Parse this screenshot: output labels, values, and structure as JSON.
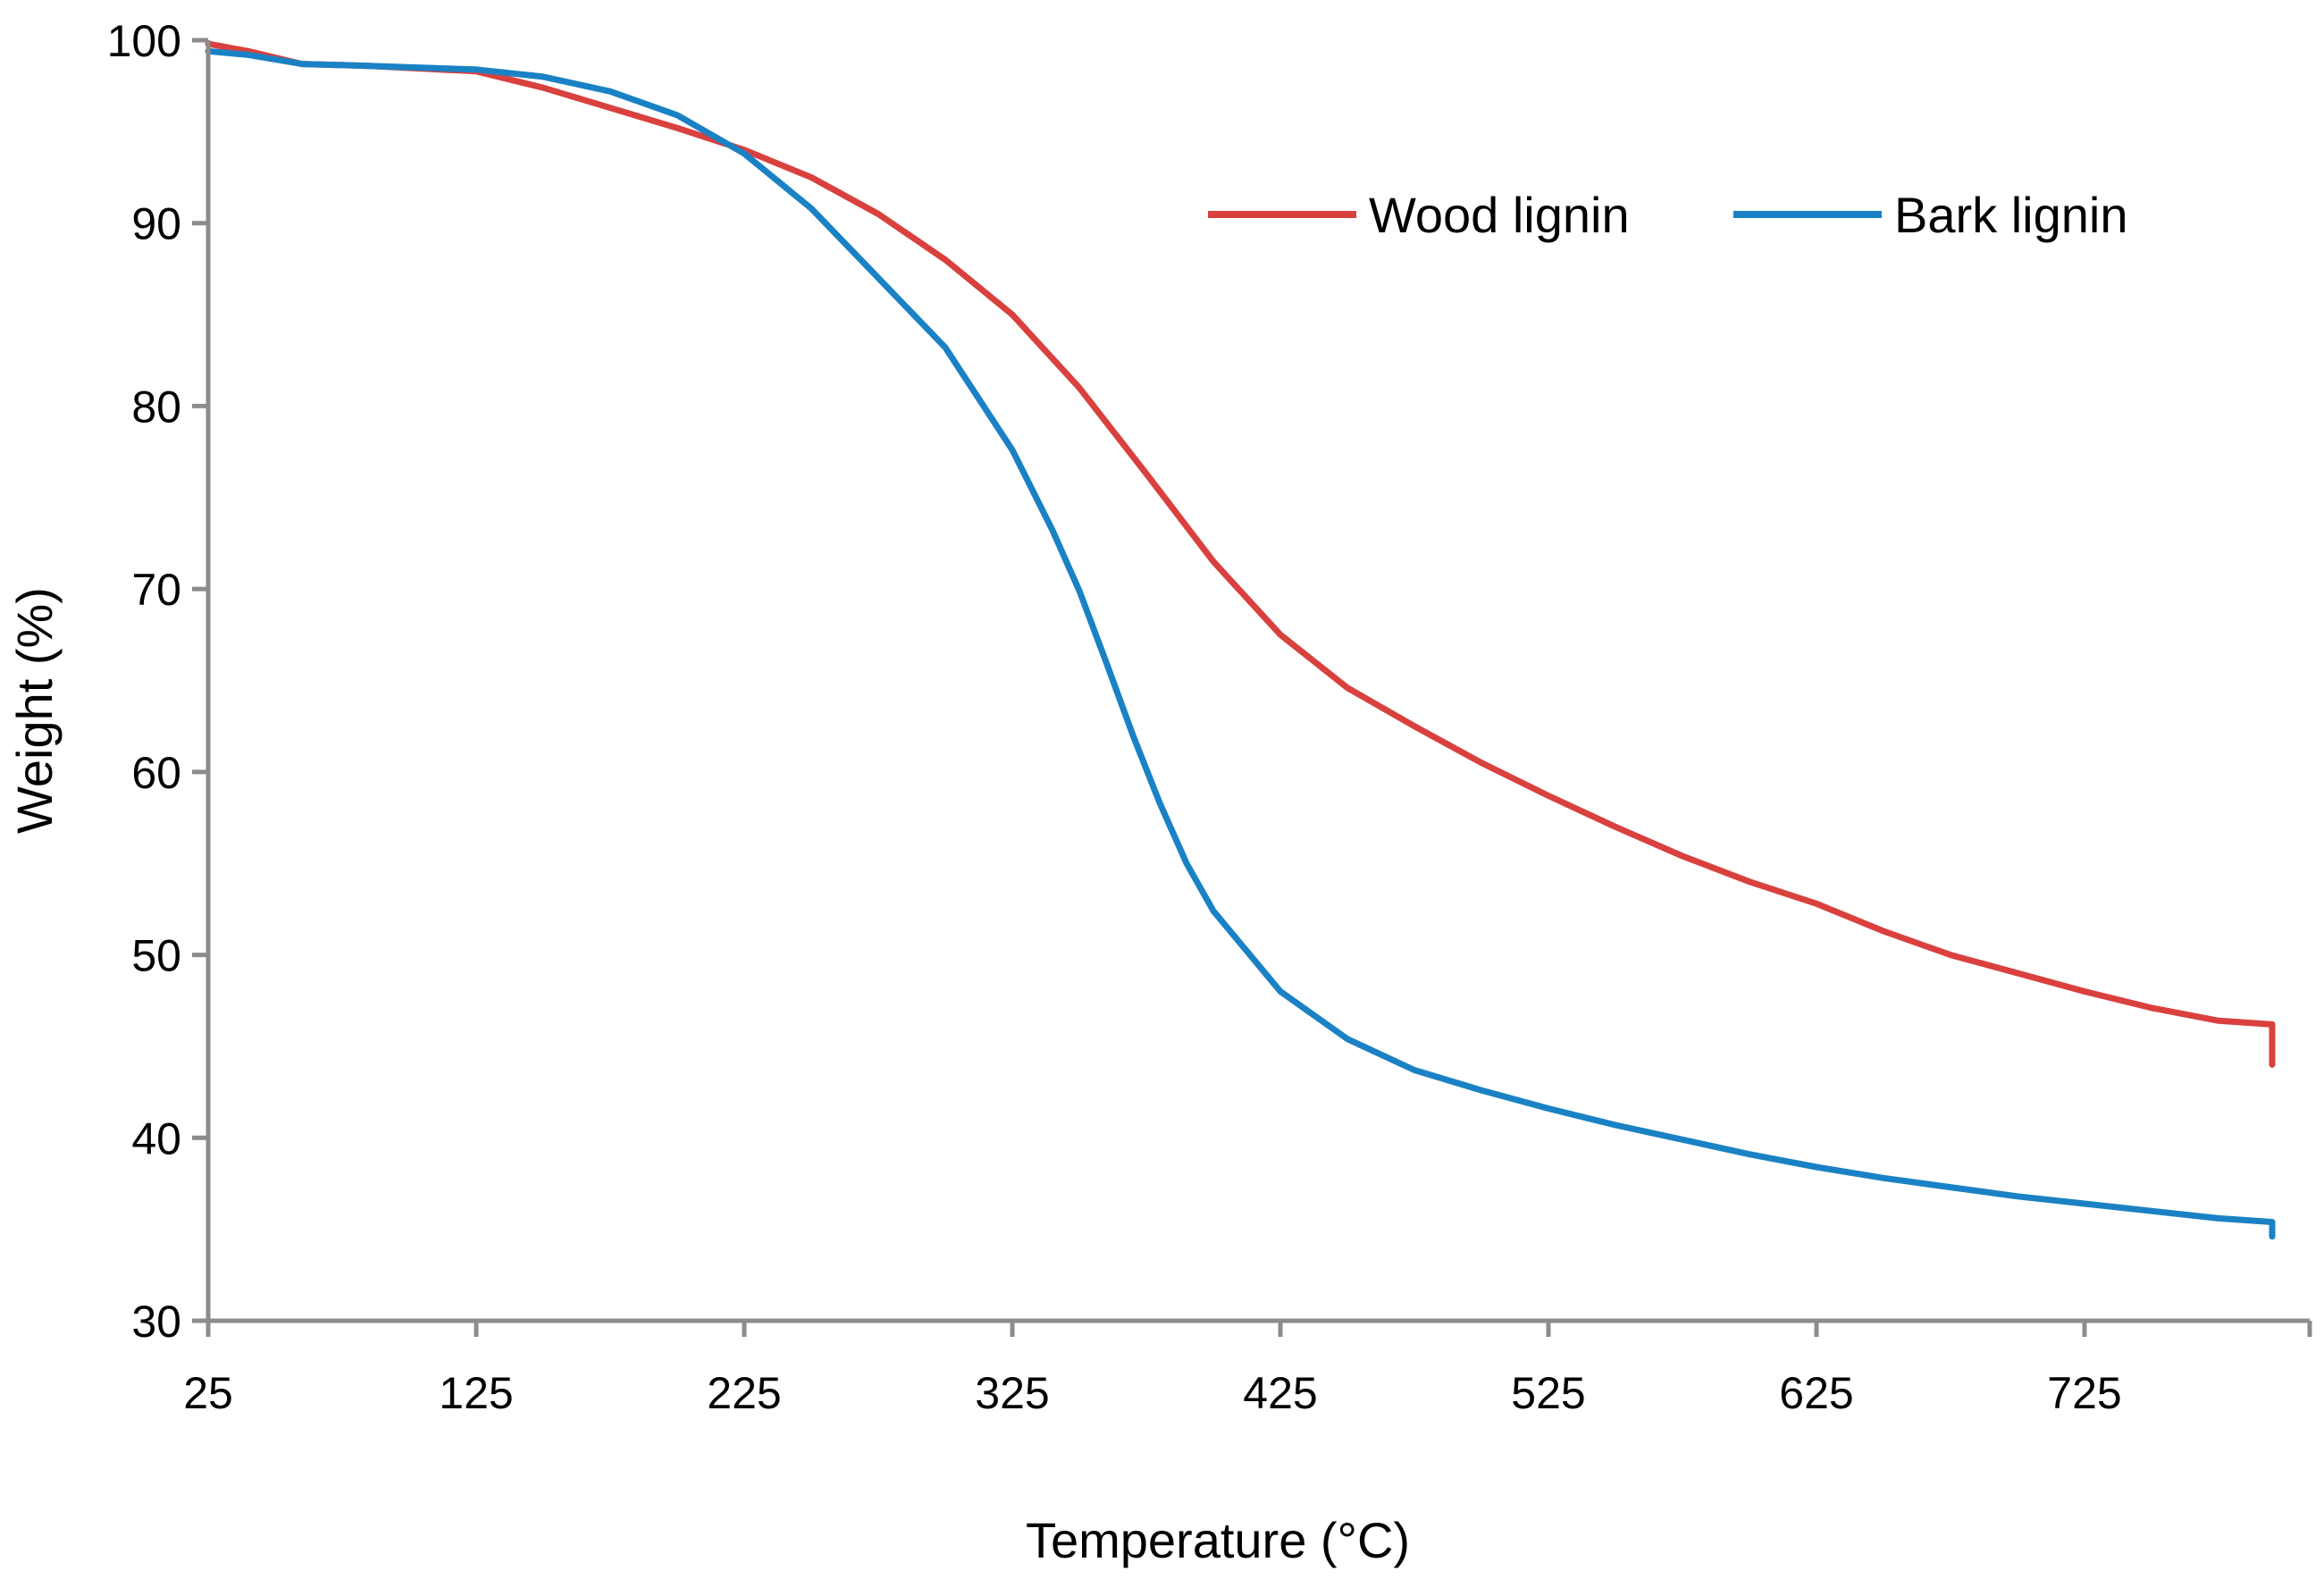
{
  "chart_data": {
    "type": "line",
    "title": "",
    "xlabel": "Temperature (°C)",
    "ylabel": "Weight (%)",
    "xlim": [
      25,
      810
    ],
    "ylim": [
      30,
      100
    ],
    "x_ticks": [
      25,
      125,
      225,
      325,
      425,
      525,
      625,
      725
    ],
    "y_ticks": [
      30,
      40,
      50,
      60,
      70,
      80,
      90,
      100
    ],
    "grid": false,
    "legend": {
      "placement": "top-right"
    },
    "series": [
      {
        "name": "Wood lignin",
        "color": "#d9413e",
        "x": [
          25,
          40,
          60,
          85,
          125,
          150,
          175,
          200,
          225,
          250,
          275,
          300,
          325,
          350,
          375,
          400,
          425,
          450,
          475,
          500,
          525,
          550,
          575,
          600,
          625,
          650,
          675,
          700,
          725,
          750,
          775,
          795,
          795
        ],
        "y": [
          99.8,
          99.4,
          98.7,
          98.6,
          98.3,
          97.4,
          96.3,
          95.2,
          94.0,
          92.5,
          90.5,
          88.0,
          85.0,
          81.0,
          76.3,
          71.5,
          67.5,
          64.6,
          62.5,
          60.5,
          58.7,
          57.0,
          55.4,
          54.0,
          52.8,
          51.3,
          50.0,
          49.0,
          48.0,
          47.1,
          46.4,
          46.2,
          44.0
        ]
      },
      {
        "name": "Bark lignin",
        "color": "#1a82c4",
        "x": [
          25,
          40,
          60,
          85,
          125,
          150,
          175,
          200,
          225,
          250,
          275,
          300,
          325,
          340,
          350,
          360,
          370,
          380,
          390,
          400,
          425,
          450,
          475,
          500,
          525,
          550,
          575,
          600,
          625,
          650,
          675,
          700,
          725,
          750,
          775,
          795,
          795
        ],
        "y": [
          99.4,
          99.2,
          98.7,
          98.6,
          98.4,
          98.0,
          97.2,
          95.9,
          93.8,
          90.8,
          87.0,
          83.2,
          77.6,
          73.2,
          69.9,
          66.0,
          62.0,
          58.3,
          55.0,
          52.4,
          48.0,
          45.4,
          43.7,
          42.6,
          41.6,
          40.7,
          39.9,
          39.1,
          38.4,
          37.8,
          37.3,
          36.8,
          36.4,
          36.0,
          35.6,
          35.4,
          34.6
        ]
      }
    ]
  }
}
